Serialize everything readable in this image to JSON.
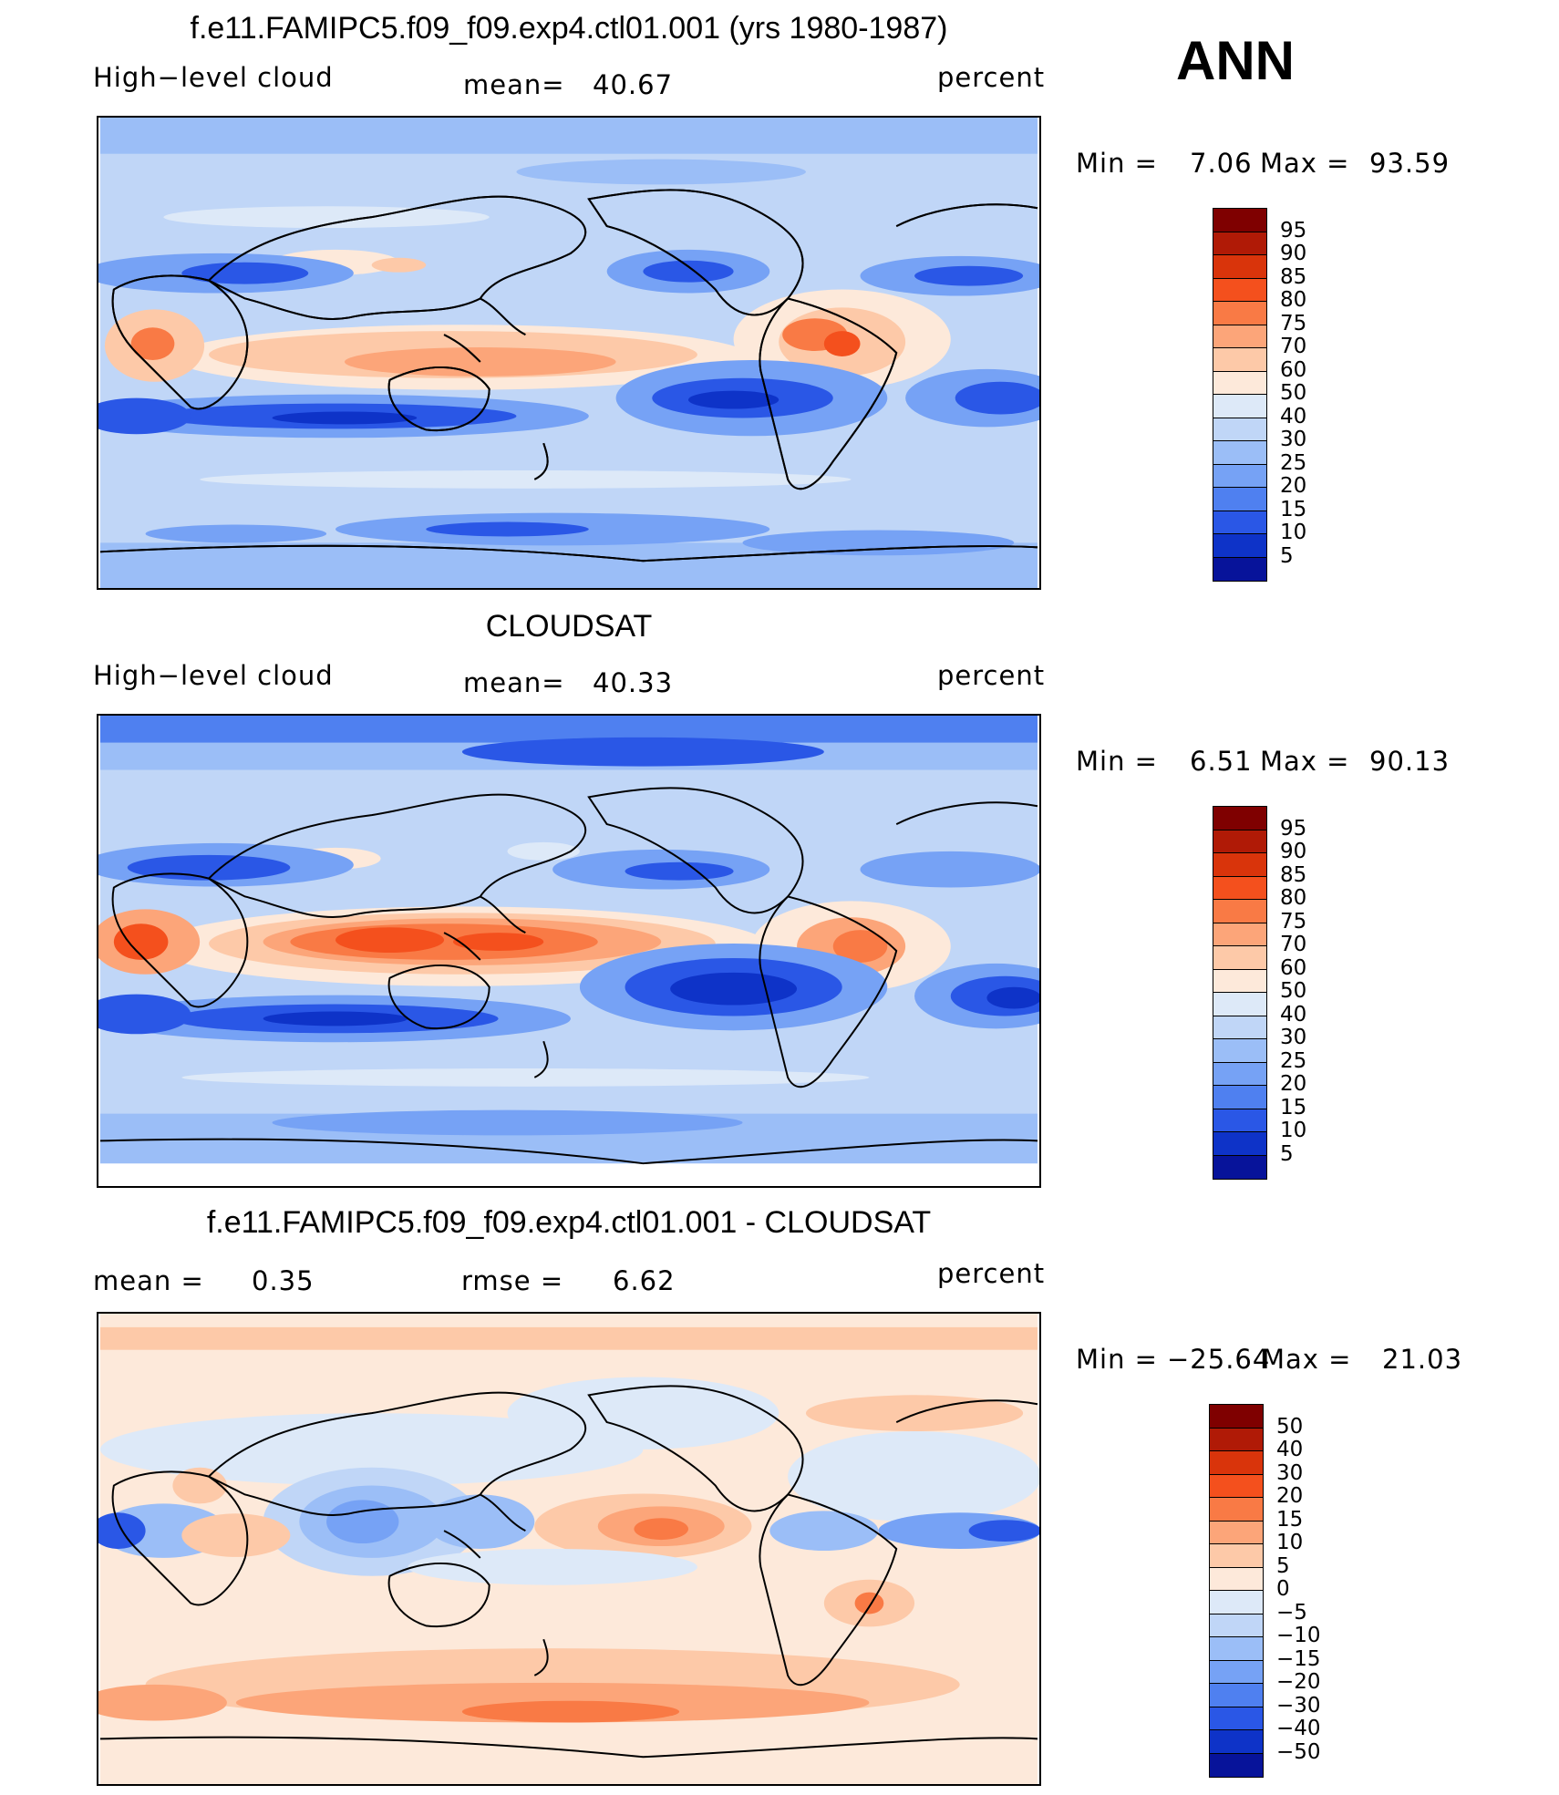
{
  "season": "ANN",
  "panels": [
    {
      "title": "f.e11.FAMIPC5.f09_f09.exp4.ctl01.001 (yrs 1980-1987)",
      "left_label": "High−level cloud",
      "mean_label": "mean=",
      "mean_value": "40.67",
      "units": "percent",
      "min_label": "Min  =",
      "min_value": "7.06",
      "max_label": "Max  =",
      "max_value": "93.59"
    },
    {
      "title": "CLOUDSAT",
      "left_label": "High−level cloud",
      "mean_label": "mean=",
      "mean_value": "40.33",
      "units": "percent",
      "min_label": "Min  =",
      "min_value": "6.51",
      "max_label": "Max  =",
      "max_value": "90.13"
    },
    {
      "title": "f.e11.FAMIPC5.f09_f09.exp4.ctl01.001 - CLOUDSAT",
      "left_label": "mean  =",
      "left_value": "0.35",
      "rmse_label": "rmse  =",
      "rmse_value": "6.62",
      "units": "percent",
      "min_label": "Min  =",
      "min_value": "−25.64",
      "max_label": "Max  =",
      "max_value": "21.03"
    }
  ],
  "chart_data": [
    {
      "type": "heatmap",
      "title": "f.e11.FAMIPC5.f09_f09.exp4.ctl01.001 (yrs 1980-1987)",
      "variable": "High−level cloud",
      "units": "percent",
      "mean": 40.67,
      "min": 7.06,
      "max": 93.59,
      "colorbar_levels": [
        "95",
        "90",
        "85",
        "80",
        "75",
        "70",
        "60",
        "50",
        "40",
        "30",
        "25",
        "20",
        "15",
        "10",
        "5"
      ],
      "colorbar_colors": [
        "#7f0000",
        "#b01a06",
        "#d9340b",
        "#f4501d",
        "#f97a45",
        "#fca579",
        "#fdc9a8",
        "#fde9da",
        "#dde9f8",
        "#c0d6f7",
        "#9bbef7",
        "#76a2f5",
        "#4f80f0",
        "#2a57e6",
        "#0e33c8",
        "#07139a"
      ]
    },
    {
      "type": "heatmap",
      "title": "CLOUDSAT",
      "variable": "High−level cloud",
      "units": "percent",
      "mean": 40.33,
      "min": 6.51,
      "max": 90.13,
      "colorbar_levels": [
        "95",
        "90",
        "85",
        "80",
        "75",
        "70",
        "60",
        "50",
        "40",
        "30",
        "25",
        "20",
        "15",
        "10",
        "5"
      ],
      "colorbar_colors": [
        "#7f0000",
        "#b01a06",
        "#d9340b",
        "#f4501d",
        "#f97a45",
        "#fca579",
        "#fdc9a8",
        "#fde9da",
        "#dde9f8",
        "#c0d6f7",
        "#9bbef7",
        "#76a2f5",
        "#4f80f0",
        "#2a57e6",
        "#0e33c8",
        "#07139a"
      ]
    },
    {
      "type": "heatmap",
      "title": "f.e11.FAMIPC5.f09_f09.exp4.ctl01.001 - CLOUDSAT",
      "units": "percent",
      "mean": 0.35,
      "rmse": 6.62,
      "min": -25.64,
      "max": 21.03,
      "colorbar_levels": [
        "50",
        "40",
        "30",
        "20",
        "15",
        "10",
        "5",
        "0",
        "−5",
        "−10",
        "−15",
        "−20",
        "−30",
        "−40",
        "−50"
      ],
      "colorbar_colors": [
        "#7f0000",
        "#b01a06",
        "#d9340b",
        "#f4501d",
        "#f97a45",
        "#fca579",
        "#fdc9a8",
        "#fde9da",
        "#dde9f8",
        "#c0d6f7",
        "#9bbef7",
        "#76a2f5",
        "#4f80f0",
        "#2a57e6",
        "#0e33c8",
        "#07139a"
      ]
    }
  ]
}
